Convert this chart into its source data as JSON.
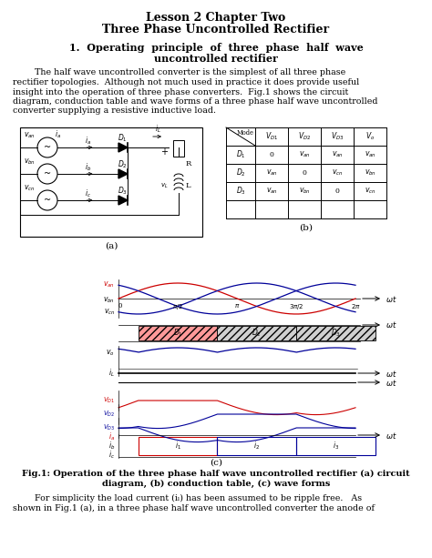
{
  "title_line1": "Lesson 2 Chapter Two",
  "title_line2": "Three Phase Uncontrolled Rectifier",
  "bg_color": "#ffffff",
  "text_color": "#000000",
  "caption_line1": "Fig.1: Operation of the three phase half wave uncontrolled rectifier (a) circuit",
  "caption_line2": "diagram, (b) conduction table, (c) wave forms",
  "footer_line1": "        For simplicity the load current (i",
  "footer_line2": "shown in Fig.1 (a), in a three phase half wave uncontrolled converter the anode of",
  "table_headers": [
    "$V_{D1}$",
    "$V_{D2}$",
    "$V_{D3}$",
    "$V_o$"
  ],
  "table_row_labels": [
    "$D_1$",
    "$D_2$",
    "$D_3$"
  ],
  "table_cells": [
    [
      "0",
      "$v_{an}$",
      "$v_{an}$",
      "$v_{an}$"
    ],
    [
      "$v_{an}$",
      "0",
      "$v_{cn}$",
      "$v_{bn}$"
    ],
    [
      "$v_{an}$",
      "$v_{bn}$",
      "0",
      "$v_{cn}$"
    ]
  ]
}
